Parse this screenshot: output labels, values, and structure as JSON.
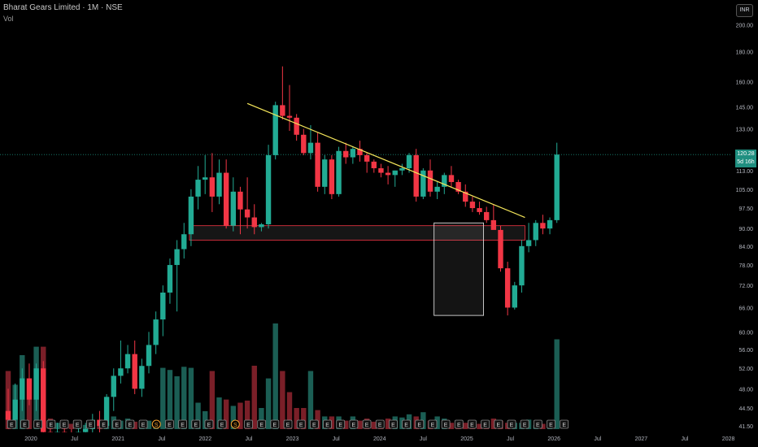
{
  "header": {
    "title": "Bharat Gears Limited · 1M · NSE",
    "volume_label": "Vol",
    "currency_button": "INR"
  },
  "price_tag": {
    "price": "120.28",
    "countdown": "5d 16h"
  },
  "colors": {
    "up": "#22ab94",
    "down": "#f23645",
    "up_vol": "#1b5e54",
    "down_vol": "#7a1f28",
    "trendline": "#f5e65a",
    "zone_border": "#f23645",
    "box_border": "#d8d8d8",
    "current_line": "#22ab94"
  },
  "chart_data": {
    "type": "candlestick",
    "symbol": "Bharat Gears Limited",
    "interval": "1M",
    "exchange": "NSE",
    "y_scale": "log",
    "ylim": [
      37,
      215
    ],
    "y_ticks": [
      "200.00",
      "180.00",
      "160.00",
      "145.00",
      "133.00",
      "120.28",
      "113.00",
      "105.00",
      "97.50",
      "90.00",
      "84.00",
      "78.00",
      "72.00",
      "66.00",
      "60.00",
      "56.00",
      "52.00",
      "48.00",
      "44.50",
      "41.50",
      "38.70"
    ],
    "x_ticks": [
      "2020",
      "Jul",
      "2021",
      "Jul",
      "2022",
      "Jul",
      "2023",
      "Jul",
      "2024",
      "Jul",
      "2025",
      "Jul",
      "2026",
      "Jul",
      "2027",
      "Jul",
      "2028"
    ],
    "first_candle": "2019-11",
    "candles": [
      [
        44.0,
        48.0,
        41.0,
        42.5
      ],
      [
        42.5,
        49.0,
        41.5,
        46.0
      ],
      [
        46.0,
        52.0,
        44.0,
        50.0
      ],
      [
        50.0,
        53.0,
        45.0,
        46.0
      ],
      [
        46.0,
        53.0,
        44.0,
        52.0
      ],
      [
        52.0,
        53.5,
        40.0,
        40.5
      ],
      [
        40.5,
        42.0,
        37.5,
        38.5
      ],
      [
        38.5,
        42.0,
        37.5,
        40.5
      ],
      [
        40.5,
        42.5,
        38.5,
        39.5
      ],
      [
        39.5,
        41.0,
        38.0,
        38.8
      ],
      [
        38.8,
        41.5,
        38.0,
        40.5
      ],
      [
        40.5,
        42.0,
        39.0,
        41.0
      ],
      [
        41.0,
        43.5,
        39.5,
        42.5
      ],
      [
        42.5,
        44.0,
        40.0,
        41.5
      ],
      [
        41.5,
        47.0,
        41.0,
        46.5
      ],
      [
        46.5,
        52.0,
        44.0,
        50.5
      ],
      [
        50.5,
        58.0,
        49.0,
        52.0
      ],
      [
        52.0,
        57.0,
        51.0,
        55.0
      ],
      [
        55.0,
        58.0,
        47.0,
        48.0
      ],
      [
        48.0,
        54.0,
        46.5,
        52.5
      ],
      [
        52.5,
        60.0,
        51.0,
        57.0
      ],
      [
        57.0,
        65.0,
        55.0,
        63.0
      ],
      [
        63.0,
        72.0,
        59.0,
        70.0
      ],
      [
        70.0,
        80.0,
        67.0,
        78.0
      ],
      [
        78.0,
        86.0,
        65.0,
        83.0
      ],
      [
        83.0,
        92.0,
        80.0,
        88.0
      ],
      [
        88.0,
        105.0,
        84.0,
        102.0
      ],
      [
        102.0,
        115.0,
        97.0,
        109.0
      ],
      [
        109.0,
        120.0,
        103.0,
        110.0
      ],
      [
        110.0,
        121.0,
        96.0,
        102.0
      ],
      [
        102.0,
        118.0,
        99.0,
        112.0
      ],
      [
        112.0,
        118.0,
        90.0,
        91.0
      ],
      [
        91.0,
        110.0,
        89.0,
        104.0
      ],
      [
        104.0,
        106.0,
        88.0,
        97.0
      ],
      [
        97.0,
        110.0,
        90.0,
        94.0
      ],
      [
        94.0,
        99.0,
        88.0,
        90.5
      ],
      [
        90.5,
        92.0,
        89.0,
        91.5
      ],
      [
        91.5,
        125.0,
        90.0,
        120.0
      ],
      [
        120.0,
        148.0,
        118.0,
        146.0
      ],
      [
        146.0,
        170.0,
        138.0,
        140.0
      ],
      [
        140.0,
        158.0,
        132.0,
        139.0
      ],
      [
        139.0,
        141.0,
        127.0,
        130.0
      ],
      [
        130.0,
        133.0,
        120.0,
        121.0
      ],
      [
        121.0,
        135.0,
        118.0,
        126.0
      ],
      [
        126.0,
        131.0,
        104.0,
        106.0
      ],
      [
        106.0,
        120.0,
        103.0,
        118.0
      ],
      [
        118.0,
        120.0,
        101.0,
        103.0
      ],
      [
        103.0,
        124.0,
        102.0,
        122.0
      ],
      [
        122.0,
        126.0,
        116.0,
        119.0
      ],
      [
        119.0,
        124.0,
        116.0,
        123.0
      ],
      [
        123.0,
        127.0,
        117.0,
        120.0
      ],
      [
        120.0,
        121.0,
        112.0,
        117.0
      ],
      [
        117.0,
        118.0,
        112.0,
        114.0
      ],
      [
        114.0,
        116.0,
        110.0,
        112.0
      ],
      [
        112.0,
        115.0,
        107.0,
        111.0
      ],
      [
        111.0,
        113.0,
        106.0,
        113.0
      ],
      [
        113.0,
        116.0,
        111.0,
        114.0
      ],
      [
        114.0,
        121.0,
        112.0,
        120.0
      ],
      [
        120.0,
        123.0,
        100.0,
        102.0
      ],
      [
        102.0,
        114.0,
        101.0,
        113.0
      ],
      [
        113.0,
        118.0,
        102.0,
        104.0
      ],
      [
        104.0,
        108.0,
        101.0,
        106.0
      ],
      [
        106.0,
        112.0,
        103.0,
        111.0
      ],
      [
        111.0,
        115.0,
        106.0,
        108.0
      ],
      [
        108.0,
        109.0,
        103.0,
        104.0
      ],
      [
        104.0,
        107.0,
        98.0,
        100.0
      ],
      [
        100.0,
        102.0,
        96.0,
        97.5
      ],
      [
        97.5,
        100.0,
        95.0,
        96.0
      ],
      [
        96.0,
        98.0,
        92.0,
        93.0
      ],
      [
        93.0,
        99.0,
        90.0,
        89.5
      ],
      [
        89.5,
        91.0,
        76.0,
        77.0
      ],
      [
        77.0,
        79.0,
        64.0,
        66.0
      ],
      [
        66.0,
        73.0,
        65.5,
        72.0
      ],
      [
        72.0,
        86.0,
        70.0,
        84.0
      ],
      [
        84.0,
        92.0,
        82.0,
        86.0
      ],
      [
        86.0,
        93.0,
        84.0,
        92.0
      ],
      [
        92.0,
        95.0,
        88.0,
        90.0
      ],
      [
        90.0,
        94.0,
        88.0,
        93.0
      ],
      [
        93.0,
        126.0,
        92.0,
        120.28
      ]
    ],
    "volume": [
      0.55,
      0.42,
      0.7,
      0.28,
      0.78,
      0.78,
      0.1,
      0.06,
      0.08,
      0.05,
      0.03,
      0.04,
      0.05,
      0.05,
      0.06,
      0.12,
      0.08,
      0.1,
      0.07,
      0.05,
      0.08,
      0.06,
      0.58,
      0.56,
      0.5,
      0.59,
      0.58,
      0.25,
      0.17,
      0.55,
      0.3,
      0.28,
      0.22,
      0.25,
      0.27,
      0.6,
      0.2,
      0.48,
      1.0,
      0.55,
      0.35,
      0.2,
      0.2,
      0.55,
      0.18,
      0.12,
      0.12,
      0.12,
      0.08,
      0.12,
      0.08,
      0.1,
      0.07,
      0.07,
      0.1,
      0.12,
      0.11,
      0.14,
      0.12,
      0.16,
      0.08,
      0.12,
      0.1,
      0.06,
      0.06,
      0.06,
      0.05,
      0.05,
      0.06,
      0.1,
      0.08,
      0.06,
      0.06,
      0.06,
      0.09,
      0.04,
      0.05,
      0.06,
      0.85
    ],
    "trendline": {
      "from": [
        "2022-09",
        147.0
      ],
      "to": [
        "2025-12",
        94.0
      ]
    },
    "support_zone": {
      "from": "2022-01",
      "to": "2025-12",
      "low": 86.0,
      "high": 91.0
    },
    "highlight_box": {
      "from": "2024-12",
      "to": "2025-06",
      "low": 64.0,
      "high": 92.0
    },
    "current_price": 120.28,
    "earnings_markers": [
      "E",
      "E",
      "E",
      "E",
      "E",
      "E",
      "E",
      "E",
      "E",
      "E",
      "E",
      "S",
      "E",
      "E",
      "E",
      "E",
      "E",
      "S",
      "E",
      "E",
      "E",
      "E",
      "E",
      "E",
      "E",
      "E",
      "E",
      "E",
      "E",
      "E",
      "E",
      "E",
      "E",
      "E",
      "E",
      "E",
      "E",
      "E",
      "E",
      "E",
      "E",
      "E",
      "E"
    ]
  }
}
